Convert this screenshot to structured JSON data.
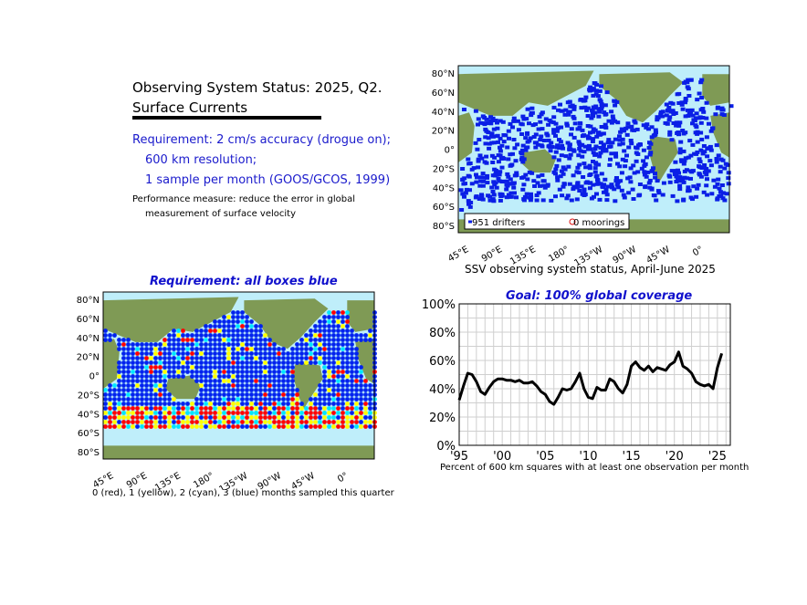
{
  "header": {
    "title_line1": "Observing System Status: 2025, Q2.",
    "title_line2": "Surface Currents",
    "requirement_line1": "Requirement: 2 cm/s accuracy (drogue on);",
    "requirement_line2": "600 km resolution;",
    "requirement_line3": "1 sample per month (GOOS/GCOS, 1999)",
    "performance_line1": "Performance measure: reduce the error in global",
    "performance_line2": "measurement of surface velocity"
  },
  "colors": {
    "requirement_text": "#1a1acc",
    "panel_title": "#1111cc",
    "ocean": "#bfeefa",
    "land": "#7f9a55",
    "drifter": "#0a1fe6",
    "mooring": "#e01010",
    "month0": "#ff0000",
    "month1": "#ffff00",
    "month2": "#00e5ff",
    "month3": "#0022ee"
  },
  "lat_ticks": [
    "80°N",
    "60°N",
    "40°N",
    "20°N",
    "0°",
    "20°S",
    "40°S",
    "60°S",
    "80°S"
  ],
  "lon_ticks": [
    "45°E",
    "90°E",
    "135°E",
    "180°",
    "135°W",
    "90°W",
    "45°W",
    "0°"
  ],
  "top_map": {
    "legend_drifters": "951 drifters",
    "legend_moorings": "0 moorings",
    "caption": "SSV observing system status, April-June 2025"
  },
  "bottom_map": {
    "title": "Requirement: all boxes blue",
    "caption": "0 (red), 1 (yellow), 2 (cyan), 3 (blue) months sampled this quarter"
  },
  "chart_data": {
    "type": "line",
    "title": "Goal: 100% global coverage",
    "xlabel": "Percent of 600 km squares with at least one observation per month",
    "ylabel": "",
    "x_tick_labels": [
      "'95",
      "'00",
      "'05",
      "'10",
      "'15",
      "'20",
      "'25"
    ],
    "y_tick_labels": [
      "0%",
      "20%",
      "40%",
      "60%",
      "80%",
      "100%"
    ],
    "xlim": [
      1995,
      2026.5
    ],
    "ylim": [
      0,
      100
    ],
    "grid": true,
    "series": [
      {
        "x": [
          1995.0,
          1995.5,
          1996.0,
          1996.5,
          1997.0,
          1997.5,
          1998.0,
          1998.5,
          1999.0,
          1999.5,
          2000.0,
          2000.5,
          2001.0,
          2001.5,
          2002.0,
          2002.5,
          2003.0,
          2003.5,
          2004.0,
          2004.5,
          2005.0,
          2005.5,
          2006.0,
          2006.5,
          2007.0,
          2007.5,
          2008.0,
          2008.5,
          2009.0,
          2009.5,
          2010.0,
          2010.5,
          2011.0,
          2011.5,
          2012.0,
          2012.5,
          2013.0,
          2013.5,
          2014.0,
          2014.5,
          2015.0,
          2015.5,
          2016.0,
          2016.5,
          2017.0,
          2017.5,
          2018.0,
          2018.5,
          2019.0,
          2019.5,
          2020.0,
          2020.5,
          2021.0,
          2021.5,
          2022.0,
          2022.5,
          2023.0,
          2023.5,
          2024.0,
          2024.5,
          2025.0,
          2025.5
        ],
        "values": [
          32,
          42,
          51,
          50,
          45,
          38,
          36,
          41,
          45,
          47,
          47,
          46,
          46,
          45,
          46,
          44,
          44,
          45,
          42,
          38,
          36,
          31,
          29,
          34,
          40,
          39,
          40,
          45,
          51,
          40,
          34,
          33,
          41,
          39,
          39,
          47,
          45,
          40,
          37,
          43,
          56,
          59,
          55,
          53,
          56,
          52,
          55,
          54,
          53,
          57,
          59,
          66,
          56,
          54,
          51,
          45,
          43,
          42,
          43,
          40,
          55,
          65
        ]
      }
    ]
  }
}
